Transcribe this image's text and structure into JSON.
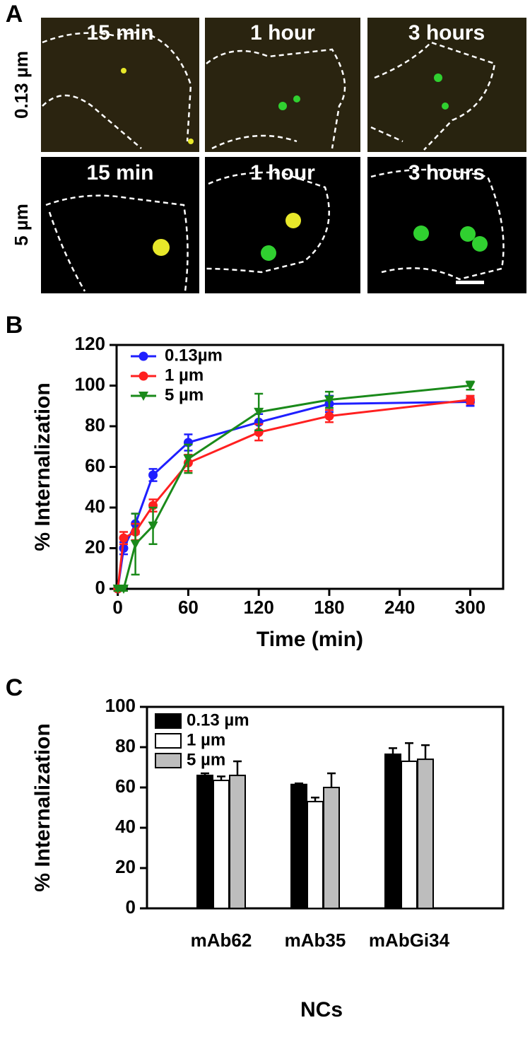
{
  "panel_labels": [
    "A",
    "B",
    "C"
  ],
  "panel_a": {
    "row_labels": [
      "0.13 µm",
      "5 µm"
    ],
    "column_titles": [
      "15 min",
      "1 hour",
      "3 hours"
    ]
  },
  "chart_data": [
    {
      "type": "line",
      "x_label": "Time (min)",
      "y_label": "% Internalization",
      "x": [
        0,
        5,
        15,
        30,
        60,
        120,
        180,
        300
      ],
      "series": [
        {
          "name": "0.13µm",
          "color": "#1f1fff",
          "marker": "circle",
          "values": [
            0,
            20,
            32,
            56,
            72,
            82,
            91,
            92
          ],
          "errors": [
            1,
            3,
            5,
            3,
            4,
            4,
            4,
            2
          ]
        },
        {
          "name": "1 µm",
          "color": "#ff2020",
          "marker": "circle",
          "values": [
            0,
            25,
            28,
            41,
            62,
            77,
            85,
            93
          ],
          "errors": [
            1,
            3,
            4,
            3,
            4,
            4,
            3,
            2
          ]
        },
        {
          "name": "5 µm",
          "color": "#1a8a1a",
          "marker": "triangle-down",
          "values": [
            0,
            0,
            22,
            31,
            64,
            87,
            93,
            100
          ],
          "errors": [
            1,
            1,
            15,
            9,
            7,
            9,
            4,
            2
          ]
        }
      ],
      "xlim": [
        -1,
        328
      ],
      "ylim": [
        0,
        120
      ],
      "xticks": [
        0,
        60,
        120,
        180,
        240,
        300
      ],
      "yticks": [
        0,
        20,
        40,
        60,
        80,
        100,
        120
      ],
      "legend": "upper left"
    },
    {
      "type": "bar",
      "x_label": "NCs",
      "y_label": "% Internalization",
      "categories": [
        "mAb62",
        "mAb35",
        "mAbGi34"
      ],
      "series": [
        {
          "name": "0.13 µm",
          "color": "#000000",
          "values": [
            66,
            61.5,
            76.5
          ],
          "errors": [
            1,
            0.5,
            3
          ]
        },
        {
          "name": "1 µm",
          "color": "#ffffff",
          "values": [
            63.5,
            53,
            73
          ],
          "errors": [
            2,
            2,
            9
          ]
        },
        {
          "name": "5 µm",
          "color": "#bdbdbd",
          "values": [
            66,
            60,
            74
          ],
          "errors": [
            7,
            7,
            7
          ]
        }
      ],
      "ylim": [
        0,
        100
      ],
      "yticks": [
        0,
        20,
        40,
        60,
        80,
        100
      ],
      "legend": "upper left"
    }
  ]
}
